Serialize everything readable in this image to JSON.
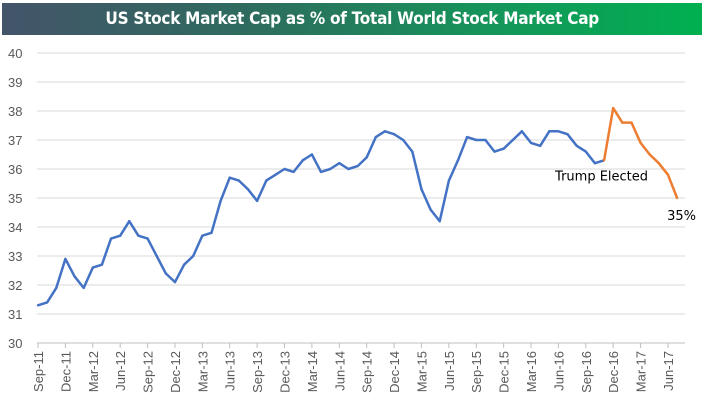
{
  "chart_data": {
    "type": "line",
    "title": "US Stock Market Cap as % of Total World Stock Market Cap",
    "xlabel": "",
    "ylabel": "",
    "ylim": [
      30,
      40
    ],
    "yticks": [
      30,
      31,
      32,
      33,
      34,
      35,
      36,
      37,
      38,
      39,
      40
    ],
    "xlim": [
      "2011-09",
      "2017-08"
    ],
    "xtick_labels": [
      "Sep-11",
      "Dec-11",
      "Mar-12",
      "Jun-12",
      "Sep-12",
      "Dec-12",
      "Mar-13",
      "Jun-13",
      "Sep-13",
      "Dec-13",
      "Mar-14",
      "Jun-14",
      "Sep-14",
      "Dec-14",
      "Mar-15",
      "Jun-15",
      "Sep-15",
      "Dec-15",
      "Mar-16",
      "Jun-16",
      "Sep-16",
      "Dec-16",
      "Mar-17",
      "Jun-17"
    ],
    "grid": true,
    "legend": "none",
    "colors": {
      "before": "#4472c4",
      "after": "#ed7d31"
    },
    "series": [
      {
        "x": [
          "2011-09",
          "2011-10",
          "2011-11",
          "2011-12",
          "2012-01",
          "2012-02",
          "2012-03",
          "2012-04",
          "2012-05",
          "2012-06",
          "2012-07",
          "2012-08",
          "2012-09",
          "2012-10",
          "2012-11",
          "2012-12",
          "2013-01",
          "2013-02",
          "2013-03",
          "2013-04",
          "2013-05",
          "2013-06",
          "2013-07",
          "2013-08",
          "2013-09",
          "2013-10",
          "2013-11",
          "2013-12",
          "2014-01",
          "2014-02",
          "2014-03",
          "2014-04",
          "2014-05",
          "2014-06",
          "2014-07",
          "2014-08",
          "2014-09",
          "2014-10",
          "2014-11",
          "2014-12",
          "2015-01",
          "2015-02",
          "2015-03",
          "2015-04",
          "2015-05",
          "2015-06",
          "2015-07",
          "2015-08",
          "2015-09",
          "2015-10",
          "2015-11",
          "2015-12",
          "2016-01",
          "2016-02",
          "2016-03",
          "2016-04",
          "2016-05",
          "2016-06",
          "2016-07",
          "2016-08",
          "2016-09",
          "2016-10",
          "2016-11"
        ],
        "values": [
          31.3,
          31.4,
          31.9,
          32.9,
          32.3,
          31.9,
          32.6,
          32.7,
          33.6,
          33.7,
          34.2,
          33.7,
          33.6,
          33.0,
          32.4,
          32.1,
          32.7,
          33.0,
          33.7,
          33.8,
          34.9,
          35.7,
          35.6,
          35.3,
          34.9,
          35.6,
          35.8,
          36.0,
          35.9,
          36.3,
          36.5,
          35.9,
          36.0,
          36.2,
          36.0,
          36.1,
          36.4,
          37.1,
          37.3,
          37.2,
          37.0,
          36.6,
          35.3,
          34.6,
          34.2,
          35.6,
          36.3,
          37.1,
          37.0,
          37.0,
          36.6,
          36.7,
          37.0,
          37.3,
          36.9,
          36.8,
          37.3,
          37.3,
          37.2,
          36.8,
          36.6,
          36.2,
          36.3
        ]
      },
      {
        "x": [
          "2016-11",
          "2016-12",
          "2017-01",
          "2017-02",
          "2017-03",
          "2017-04",
          "2017-05",
          "2017-06",
          "2017-07"
        ],
        "values": [
          36.3,
          38.1,
          37.6,
          37.6,
          36.9,
          36.5,
          36.2,
          35.8,
          35.0
        ]
      }
    ],
    "annotations": [
      {
        "text": "Trump Elected",
        "x": "2016-11",
        "y": 36.3
      },
      {
        "text": "35%",
        "x": "2017-07",
        "y": 35.0
      }
    ]
  }
}
